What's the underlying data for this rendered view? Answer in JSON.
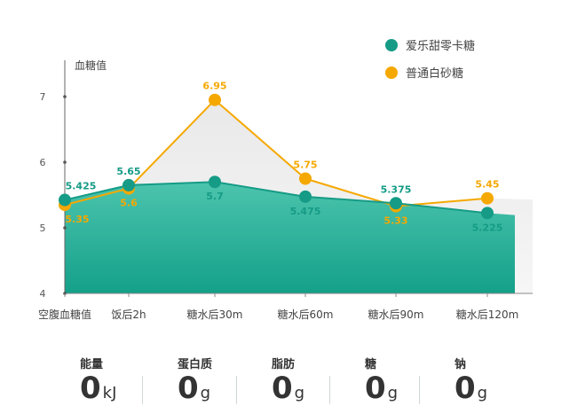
{
  "chart_data": {
    "type": "area",
    "ylabel": "血糖值",
    "ylim": [
      4,
      7.5
    ],
    "yticks": [
      4,
      5,
      6,
      7
    ],
    "categories": [
      "空腹血糖值",
      "饭后2h",
      "糖水后30m",
      "糖水后60m",
      "糖水后90m",
      "糖水后120m"
    ],
    "legend_position": "top-right",
    "grid": false,
    "series": [
      {
        "name": "爱乐甜零卡糖",
        "color": "#159b86",
        "values": [
          5.425,
          5.65,
          5.7,
          5.475,
          5.375,
          5.225
        ],
        "labels": [
          "5.425",
          "5.65",
          "5.7",
          "5.475",
          "5.375",
          "5.225"
        ]
      },
      {
        "name": "普通白砂糖",
        "color": "#f5a800",
        "values": [
          5.35,
          5.6,
          6.95,
          5.75,
          5.33,
          5.45
        ],
        "labels": [
          "5.35",
          "5.6",
          "6.95",
          "5.75",
          "5.33",
          "5.45"
        ]
      }
    ]
  },
  "nutrition": [
    {
      "label": "能量",
      "value": "0",
      "unit": "kJ"
    },
    {
      "label": "蛋白质",
      "value": "0",
      "unit": "g"
    },
    {
      "label": "脂肪",
      "value": "0",
      "unit": "g"
    },
    {
      "label": "糖",
      "value": "0",
      "unit": "g"
    },
    {
      "label": "钠",
      "value": "0",
      "unit": "g"
    }
  ]
}
